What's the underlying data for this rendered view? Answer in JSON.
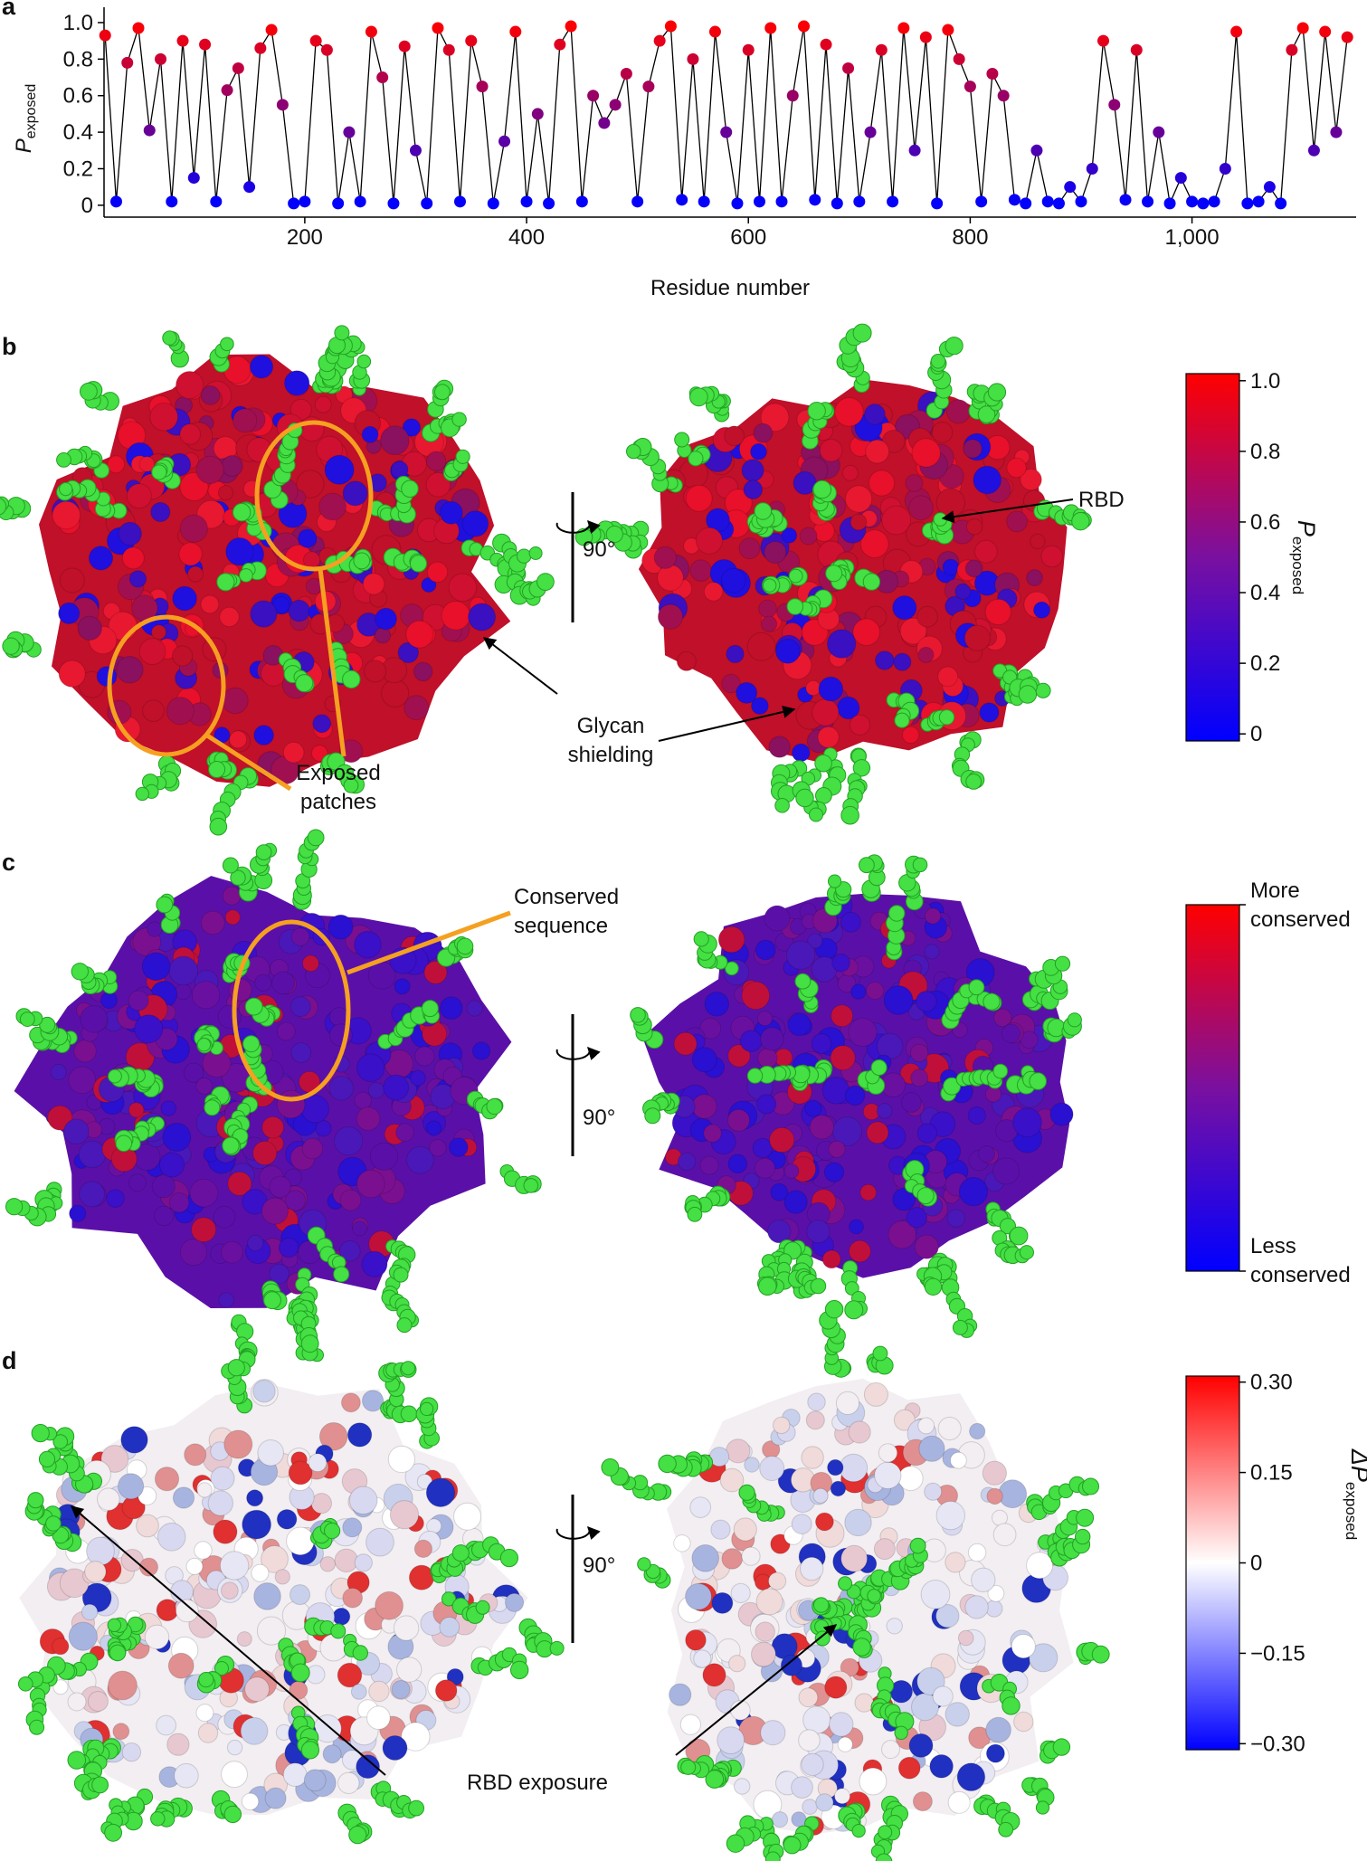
{
  "panel_labels": [
    "a",
    "b",
    "c",
    "d"
  ],
  "annotations": {
    "exposed_patches": [
      "Exposed",
      "patches"
    ],
    "glycan_shielding": [
      "Glycan",
      "shielding"
    ],
    "rbd": "RBD",
    "rotation": "90°",
    "conserved_sequence": [
      "Conserved",
      "sequence"
    ],
    "rbd_exposure": "RBD exposure"
  },
  "chart_data": [
    {
      "type": "line",
      "y_label": {
        "main": "P",
        "sub": "exposed"
      },
      "x_label": "Residue number",
      "line_color": "#000000",
      "marker_colormap": [
        "#0000ff",
        "#ff0000"
      ],
      "x": [
        20,
        30,
        40,
        50,
        60,
        70,
        80,
        90,
        100,
        110,
        120,
        130,
        140,
        150,
        160,
        170,
        180,
        190,
        200,
        210,
        220,
        230,
        240,
        250,
        260,
        270,
        280,
        290,
        300,
        310,
        320,
        330,
        340,
        350,
        360,
        370,
        380,
        390,
        400,
        410,
        420,
        430,
        440,
        450,
        460,
        470,
        480,
        490,
        500,
        510,
        520,
        530,
        540,
        550,
        560,
        570,
        580,
        590,
        600,
        610,
        620,
        630,
        640,
        650,
        660,
        670,
        680,
        690,
        700,
        710,
        720,
        730,
        740,
        750,
        760,
        770,
        780,
        790,
        800,
        810,
        820,
        830,
        840,
        850,
        860,
        870,
        880,
        890,
        900,
        910,
        920,
        930,
        940,
        950,
        960,
        970,
        980,
        990,
        1000,
        1010,
        1020,
        1030,
        1040,
        1050,
        1060,
        1070,
        1080,
        1090,
        1100,
        1110,
        1120,
        1130,
        1140
      ],
      "values": [
        0.93,
        0.02,
        0.78,
        0.97,
        0.41,
        0.8,
        0.02,
        0.9,
        0.15,
        0.88,
        0.02,
        0.63,
        0.75,
        0.1,
        0.86,
        0.96,
        0.55,
        0.01,
        0.02,
        0.9,
        0.85,
        0.01,
        0.4,
        0.02,
        0.95,
        0.7,
        0.01,
        0.87,
        0.3,
        0.01,
        0.97,
        0.85,
        0.02,
        0.9,
        0.65,
        0.01,
        0.35,
        0.95,
        0.02,
        0.5,
        0.01,
        0.88,
        0.98,
        0.02,
        0.6,
        0.45,
        0.55,
        0.72,
        0.02,
        0.65,
        0.9,
        0.98,
        0.03,
        0.8,
        0.02,
        0.95,
        0.4,
        0.01,
        0.85,
        0.02,
        0.97,
        0.02,
        0.6,
        0.98,
        0.03,
        0.88,
        0.01,
        0.75,
        0.02,
        0.4,
        0.85,
        0.02,
        0.97,
        0.3,
        0.92,
        0.01,
        0.96,
        0.8,
        0.65,
        0.02,
        0.72,
        0.6,
        0.03,
        0.01,
        0.3,
        0.02,
        0.01,
        0.1,
        0.02,
        0.2,
        0.9,
        0.55,
        0.03,
        0.85,
        0.02,
        0.4,
        0.01,
        0.15,
        0.02,
        0.01,
        0.02,
        0.2,
        0.95,
        0.01,
        0.02,
        0.1,
        0.01,
        0.85,
        0.97,
        0.3,
        0.95,
        0.4,
        0.92
      ],
      "xlim": [
        19,
        1148
      ],
      "ylim": [
        -0.065,
        1.084
      ],
      "xticks": [
        200,
        400,
        600,
        800,
        {
          "value": 1000,
          "label": "1,000"
        }
      ],
      "yticks": [
        0,
        0.2,
        0.4,
        0.6,
        0.8,
        {
          "value": 1,
          "label": "1.0"
        }
      ]
    },
    {
      "type": "colorbar",
      "label": {
        "main": "P",
        "sub": "exposed"
      },
      "colors": [
        "#0000ff",
        "#7a10a0",
        "#ff0000"
      ],
      "ylim": [
        -0.02,
        1.02
      ],
      "yticks": [
        0,
        0.2,
        0.4,
        0.6,
        0.8,
        {
          "value": 1,
          "label": "1.0"
        }
      ]
    },
    {
      "type": "colorbar",
      "top_label": [
        "More",
        "conserved"
      ],
      "bottom_label": [
        "Less",
        "conserved"
      ],
      "colors": [
        "#0000ff",
        "#7a10a0",
        "#ff0000"
      ]
    },
    {
      "type": "colorbar",
      "label": {
        "main": "ΔP",
        "sub": "exposed"
      },
      "colors": [
        "#0000ff",
        "#ffffff",
        "#ff0000"
      ],
      "ylim": [
        -0.31,
        0.31
      ],
      "yticks": [
        {
          "value": -0.3,
          "label": "−0.30"
        },
        {
          "value": -0.15,
          "label": "−0.15"
        },
        0,
        {
          "value": 0.15,
          "label": "0.15"
        },
        {
          "value": 0.3,
          "label": "0.30"
        }
      ]
    }
  ]
}
